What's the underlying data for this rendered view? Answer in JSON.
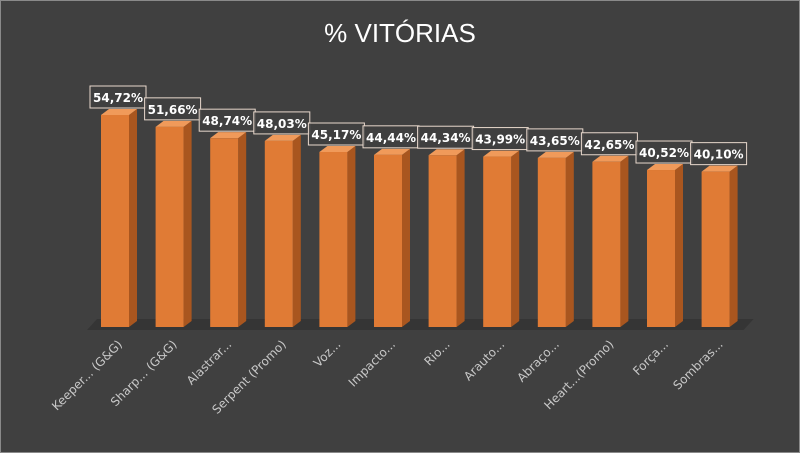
{
  "chart_data": {
    "type": "bar",
    "title": "% VITÓRIAS",
    "categories": [
      "Keeper... (G&G)",
      "Sharp... (G&G)",
      "Alastrar...",
      "Serpent (Promo)",
      "Voz...",
      "Impacto...",
      "Rio...",
      "Arauto...",
      "Abraço...",
      "Heart...(Promo)",
      "Força...",
      "Sombras..."
    ],
    "values": [
      54.72,
      51.66,
      48.74,
      48.03,
      45.17,
      44.44,
      44.34,
      43.99,
      43.65,
      42.65,
      40.52,
      40.1
    ],
    "data_labels": [
      "54,72%",
      "51,66%",
      "48,74%",
      "48,03%",
      "45,17%",
      "44,44%",
      "44,34%",
      "43,99%",
      "43,65%",
      "42,65%",
      "40,52%",
      "40,10%"
    ],
    "xlabel": "",
    "ylabel": "",
    "ylim": [
      0,
      54.72
    ],
    "grid": false,
    "legend": "none",
    "style": "3d-column",
    "colors": {
      "bar_front": "#e07b35",
      "bar_side": "#a9561f",
      "bar_top": "#f09a5a",
      "background": "#404040"
    }
  }
}
